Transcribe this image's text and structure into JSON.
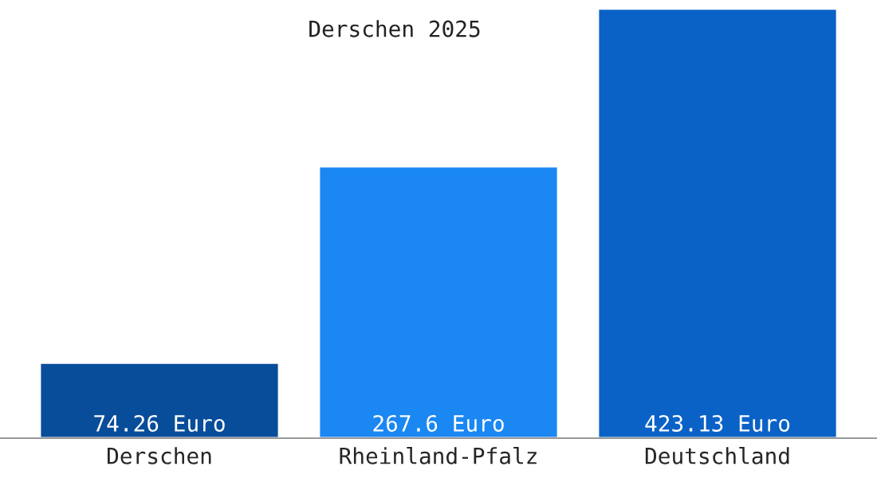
{
  "chart_data": {
    "type": "bar",
    "title": "Derschen 2025",
    "categories": [
      "Derschen",
      "Rheinland-Pfalz",
      "Deutschland"
    ],
    "values": [
      74.26,
      267.6,
      423.13
    ],
    "colors": [
      "#084d9a",
      "#1a87f2",
      "#0a62c6"
    ],
    "value_labels": [
      "74.26 Euro",
      "267.6 Euro",
      "423.13 Euro"
    ],
    "grid": false,
    "legend": false
  }
}
